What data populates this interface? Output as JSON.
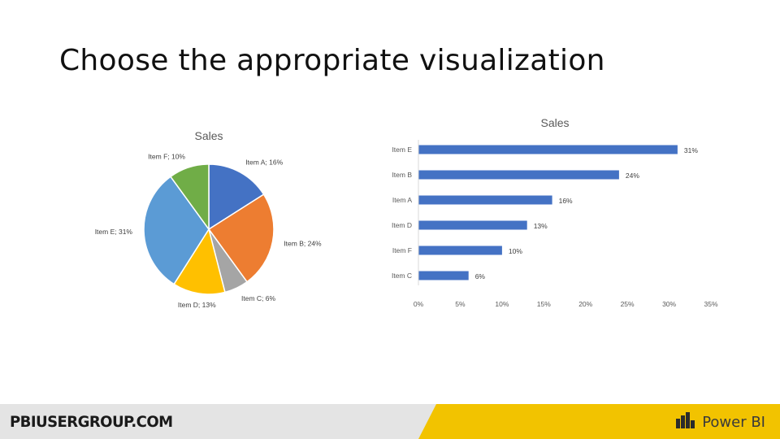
{
  "slide": {
    "title": "Choose the appropriate visualization"
  },
  "footer": {
    "site": "PBIUSERGROUP.COM",
    "brand": "Power BI"
  },
  "chart_data": [
    {
      "type": "pie",
      "title": "Sales",
      "slices": [
        {
          "label": "Item A",
          "value": 16,
          "text": "Item A; 16%",
          "color": "#4472C4"
        },
        {
          "label": "Item B",
          "value": 24,
          "text": "Item B; 24%",
          "color": "#ED7D31"
        },
        {
          "label": "Item C",
          "value": 6,
          "text": "Item C; 6%",
          "color": "#A5A5A5"
        },
        {
          "label": "Item D",
          "value": 13,
          "text": "Item D; 13%",
          "color": "#FFC000"
        },
        {
          "label": "Item E",
          "value": 31,
          "text": "Item E; 31%",
          "color": "#5B9BD5"
        },
        {
          "label": "Item F",
          "value": 10,
          "text": "Item F; 10%",
          "color": "#70AD47"
        }
      ]
    },
    {
      "type": "bar",
      "orientation": "horizontal",
      "title": "Sales",
      "categories": [
        "Item E",
        "Item B",
        "Item A",
        "Item D",
        "Item F",
        "Item C"
      ],
      "values": [
        31,
        24,
        16,
        13,
        10,
        6
      ],
      "value_labels": [
        "31%",
        "24%",
        "16%",
        "13%",
        "10%",
        "6%"
      ],
      "xlim": [
        0,
        35
      ],
      "x_ticks": [
        "0%",
        "5%",
        "10%",
        "15%",
        "20%",
        "25%",
        "30%",
        "35%"
      ],
      "bar_color": "#4472C4",
      "grid": false
    }
  ]
}
